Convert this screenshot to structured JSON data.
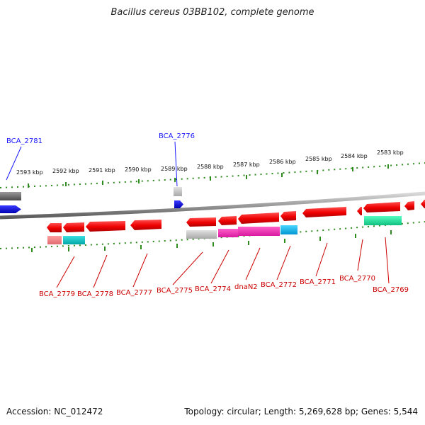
{
  "title": "Bacillus cereus 03BB102, complete genome",
  "footer": {
    "accession": "Accession: NC_012472",
    "topology": "Topology: circular; Length: 5,269,628 bp; Genes: 5,544"
  },
  "colors": {
    "backbone": "#888888",
    "tick": "#2e8b1e",
    "blue_label": "#1a1aff",
    "red_label": "#cc0000"
  },
  "scale_ticks": [
    {
      "label": "2593 kbp"
    },
    {
      "label": "2592 kbp"
    },
    {
      "label": "2591 kbp"
    },
    {
      "label": "2590 kbp"
    },
    {
      "label": "2589 kbp"
    },
    {
      "label": "2588 kbp"
    },
    {
      "label": "2587 kbp"
    },
    {
      "label": "2586 kbp"
    },
    {
      "label": "2585 kbp"
    },
    {
      "label": "2584 kbp"
    },
    {
      "label": "2583 kbp"
    }
  ],
  "gene_labels": [
    {
      "text": "BCA_2781",
      "color": "blue"
    },
    {
      "text": "BCA_2776",
      "color": "blue"
    },
    {
      "text": "BCA_2779",
      "color": "red"
    },
    {
      "text": "BCA_2778",
      "color": "red"
    },
    {
      "text": "BCA_2777",
      "color": "red"
    },
    {
      "text": "BCA_2775",
      "color": "red"
    },
    {
      "text": "BCA_2774",
      "color": "red"
    },
    {
      "text": "dnaN2",
      "color": "red"
    },
    {
      "text": "BCA_2772",
      "color": "red"
    },
    {
      "text": "BCA_2771",
      "color": "red"
    },
    {
      "text": "BCA_2770",
      "color": "red"
    },
    {
      "text": "BCA_2769",
      "color": "red"
    }
  ]
}
